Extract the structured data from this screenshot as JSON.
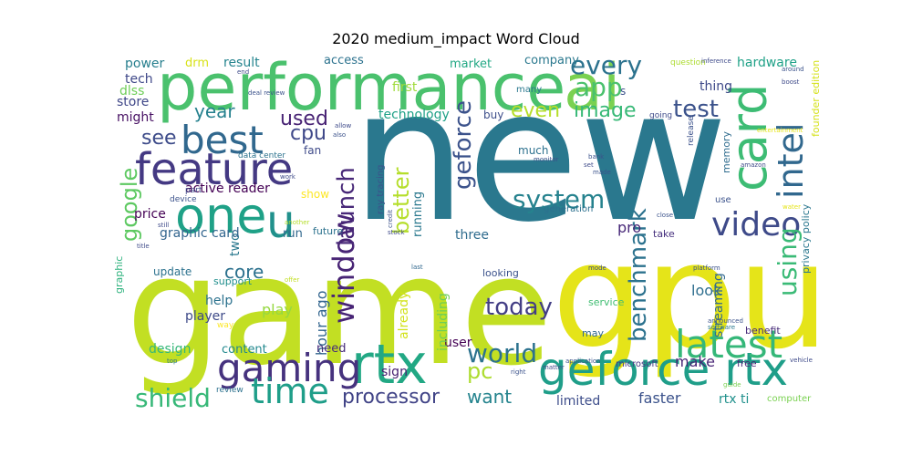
{
  "chart_data": {
    "type": "word_cloud",
    "title": "2020 medium_impact Word Cloud",
    "colormap": "viridis",
    "words": [
      {
        "text": "new",
        "weight": 1.0,
        "color": "#2a788e"
      },
      {
        "text": "game",
        "weight": 0.95,
        "color": "#c2df23"
      },
      {
        "text": "gpu",
        "weight": 0.85,
        "color": "#e5e419"
      },
      {
        "text": "performance",
        "weight": 0.55,
        "color": "#4ac16d"
      },
      {
        "text": "ai",
        "weight": 0.5,
        "color": "#7ad151"
      },
      {
        "text": "rtx",
        "weight": 0.45,
        "color": "#22a884"
      },
      {
        "text": "geforce rtx",
        "weight": 0.4,
        "color": "#1f9e89"
      },
      {
        "text": "best",
        "weight": 0.38,
        "color": "#31688e"
      },
      {
        "text": "one",
        "weight": 0.37,
        "color": "#1fa187"
      },
      {
        "text": "feature",
        "weight": 0.36,
        "color": "#443983"
      },
      {
        "text": "card",
        "weight": 0.35,
        "color": "#3dbc74"
      },
      {
        "text": "gaming",
        "weight": 0.33,
        "color": "#46327e"
      },
      {
        "text": "latest",
        "weight": 0.3,
        "color": "#35b779"
      },
      {
        "text": "video",
        "weight": 0.28,
        "color": "#3e4a89"
      },
      {
        "text": "intel",
        "weight": 0.27,
        "color": "#31688e"
      },
      {
        "text": "u",
        "weight": 0.27,
        "color": "#21918c"
      },
      {
        "text": "time",
        "weight": 0.25,
        "color": "#1f9e89"
      },
      {
        "text": "window",
        "weight": 0.24,
        "color": "#482475"
      },
      {
        "text": "system",
        "weight": 0.23,
        "color": "#26828e"
      },
      {
        "text": "world",
        "weight": 0.22,
        "color": "#2c728e"
      },
      {
        "text": "shield",
        "weight": 0.21,
        "color": "#37b878"
      },
      {
        "text": "processor",
        "weight": 0.2,
        "color": "#414487"
      },
      {
        "text": "benchmark",
        "weight": 0.2,
        "color": "#2c728e"
      },
      {
        "text": "every",
        "weight": 0.2,
        "color": "#2c728e"
      },
      {
        "text": "geforce",
        "weight": 0.19,
        "color": "#3b528b"
      },
      {
        "text": "launch",
        "weight": 0.19,
        "color": "#482878"
      },
      {
        "text": "test",
        "weight": 0.19,
        "color": "#3b528b"
      },
      {
        "text": "better",
        "weight": 0.19,
        "color": "#b5de2b"
      },
      {
        "text": "today",
        "weight": 0.18,
        "color": "#433e85"
      },
      {
        "text": "pc",
        "weight": 0.18,
        "color": "#addc30"
      },
      {
        "text": "using",
        "weight": 0.18,
        "color": "#3aba76"
      },
      {
        "text": "google",
        "weight": 0.17,
        "color": "#5ec962"
      },
      {
        "text": "app",
        "weight": 0.17,
        "color": "#4ac16d"
      },
      {
        "text": "image",
        "weight": 0.17,
        "color": "#38b977"
      },
      {
        "text": "used",
        "weight": 0.16,
        "color": "#482374"
      },
      {
        "text": "see",
        "weight": 0.16,
        "color": "#3e4c8a"
      },
      {
        "text": "want",
        "weight": 0.15,
        "color": "#25848e"
      },
      {
        "text": "even",
        "weight": 0.15,
        "color": "#b5de2b"
      },
      {
        "text": "cpu",
        "weight": 0.14,
        "color": "#3f4889"
      },
      {
        "text": "core",
        "weight": 0.14,
        "color": "#2c718e"
      },
      {
        "text": "year",
        "weight": 0.13,
        "color": "#26818e"
      },
      {
        "text": "look",
        "weight": 0.11,
        "color": "#2e6e8e"
      },
      {
        "text": "make",
        "weight": 0.1,
        "color": "#482576"
      },
      {
        "text": "limited",
        "weight": 0.1,
        "color": "#3d4d8a"
      },
      {
        "text": "faster",
        "weight": 0.1,
        "color": "#3b528b"
      },
      {
        "text": "rtx ti",
        "weight": 0.1,
        "color": "#21918c"
      },
      {
        "text": "hour ago",
        "weight": 0.1,
        "color": "#32658e"
      },
      {
        "text": "pro",
        "weight": 0.1,
        "color": "#482878"
      },
      {
        "text": "streaming",
        "weight": 0.09,
        "color": "#31688e"
      },
      {
        "text": "two",
        "weight": 0.09,
        "color": "#2a788e"
      },
      {
        "text": "three",
        "weight": 0.09,
        "color": "#2f6c8e"
      },
      {
        "text": "help",
        "weight": 0.09,
        "color": "#2c728e"
      },
      {
        "text": "play",
        "weight": 0.09,
        "color": "#95d840"
      },
      {
        "text": "player",
        "weight": 0.09,
        "color": "#3e4a89"
      },
      {
        "text": "design",
        "weight": 0.09,
        "color": "#35b779"
      },
      {
        "text": "price",
        "weight": 0.09,
        "color": "#440154"
      },
      {
        "text": "graphic card",
        "weight": 0.09,
        "color": "#32658e"
      },
      {
        "text": "active reader",
        "weight": 0.09,
        "color": "#440154"
      },
      {
        "text": "content",
        "weight": 0.08,
        "color": "#23898e"
      },
      {
        "text": "need",
        "weight": 0.08,
        "color": "#472c7a"
      },
      {
        "text": "sign",
        "weight": 0.08,
        "color": "#482071"
      },
      {
        "text": "user",
        "weight": 0.08,
        "color": "#440154"
      },
      {
        "text": "including",
        "weight": 0.08,
        "color": "#6ece58"
      },
      {
        "text": "already",
        "weight": 0.08,
        "color": "#d2e21b"
      },
      {
        "text": "running",
        "weight": 0.08,
        "color": "#2a788e"
      },
      {
        "text": "hardware",
        "weight": 0.08,
        "color": "#1fa187"
      },
      {
        "text": "thing",
        "weight": 0.08,
        "color": "#3e4989"
      },
      {
        "text": "update",
        "weight": 0.07,
        "color": "#2c728e"
      },
      {
        "text": "run",
        "weight": 0.07,
        "color": "#31688e"
      },
      {
        "text": "show",
        "weight": 0.07,
        "color": "#fde725"
      },
      {
        "text": "fan",
        "weight": 0.07,
        "color": "#3e4a89"
      },
      {
        "text": "technology",
        "weight": 0.07,
        "color": "#1fa187"
      },
      {
        "text": "first",
        "weight": 0.07,
        "color": "#9fda3a"
      },
      {
        "text": "market",
        "weight": 0.07,
        "color": "#22a884"
      },
      {
        "text": "access",
        "weight": 0.07,
        "color": "#2c728e"
      },
      {
        "text": "result",
        "weight": 0.07,
        "color": "#25848e"
      },
      {
        "text": "drm",
        "weight": 0.07,
        "color": "#d8e219"
      },
      {
        "text": "power",
        "weight": 0.07,
        "color": "#277f8e"
      },
      {
        "text": "tech",
        "weight": 0.07,
        "color": "#3f4889"
      },
      {
        "text": "dlss",
        "weight": 0.07,
        "color": "#6ece58"
      },
      {
        "text": "store",
        "weight": 0.07,
        "color": "#3f4788"
      },
      {
        "text": "might",
        "weight": 0.07,
        "color": "#471063"
      },
      {
        "text": "company",
        "weight": 0.07,
        "color": "#2a788e"
      },
      {
        "text": "buy",
        "weight": 0.07,
        "color": "#3d4e8a"
      },
      {
        "text": "much",
        "weight": 0.07,
        "color": "#2c718e"
      },
      {
        "text": "memory",
        "weight": 0.06,
        "color": "#2f6c8e"
      },
      {
        "text": "founder edition",
        "weight": 0.06,
        "color": "#d5e21a"
      },
      {
        "text": "privacy policy",
        "weight": 0.06,
        "color": "#2a778e"
      },
      {
        "text": "graphic",
        "weight": 0.06,
        "color": "#2db27d"
      },
      {
        "text": "support",
        "weight": 0.06,
        "color": "#218f8d"
      },
      {
        "text": "future",
        "weight": 0.06,
        "color": "#2c728e"
      },
      {
        "text": "ray tracing",
        "weight": 0.06,
        "color": "#3b528b"
      },
      {
        "text": "generation",
        "weight": 0.06,
        "color": "#2c718e"
      },
      {
        "text": "take",
        "weight": 0.06,
        "color": "#46307e"
      },
      {
        "text": "benefit",
        "weight": 0.06,
        "color": "#472c7a"
      },
      {
        "text": "service",
        "weight": 0.06,
        "color": "#40bd72"
      },
      {
        "text": "may",
        "weight": 0.06,
        "color": "#31688e"
      },
      {
        "text": "looking",
        "weight": 0.06,
        "color": "#3b528b"
      },
      {
        "text": "free",
        "weight": 0.06,
        "color": "#482475"
      },
      {
        "text": "microsoft",
        "weight": 0.06,
        "color": "#453882"
      },
      {
        "text": "computer",
        "weight": 0.05,
        "color": "#7ad151"
      },
      {
        "text": "device",
        "weight": 0.05,
        "color": "#3b528b"
      },
      {
        "text": "part",
        "weight": 0.05,
        "color": "#3e4a89"
      },
      {
        "text": "data center",
        "weight": 0.05,
        "color": "#2c728e"
      },
      {
        "text": "way",
        "weight": 0.05,
        "color": "#fde725"
      },
      {
        "text": "review",
        "weight": 0.05,
        "color": "#2c718e"
      },
      {
        "text": "use",
        "weight": 0.05,
        "color": "#3b528b"
      },
      {
        "text": "question",
        "weight": 0.05,
        "color": "#addc30"
      },
      {
        "text": "release",
        "weight": 0.05,
        "color": "#3b528b"
      },
      {
        "text": "going",
        "weight": 0.05,
        "color": "#3e4a89"
      },
      {
        "text": "many",
        "weight": 0.05,
        "color": "#2a788e"
      },
      {
        "text": "s",
        "weight": 0.05,
        "color": "#3b528b"
      },
      {
        "text": "still",
        "weight": 0.03,
        "color": "#3e4a89"
      },
      {
        "text": "another",
        "weight": 0.03,
        "color": "#b5de2b"
      },
      {
        "text": "title",
        "weight": 0.03,
        "color": "#3e4a89"
      },
      {
        "text": "offer",
        "weight": 0.03,
        "color": "#c2df23"
      },
      {
        "text": "last",
        "weight": 0.03,
        "color": "#31688e"
      },
      {
        "text": "mode",
        "weight": 0.03,
        "color": "#3e4a89"
      },
      {
        "text": "platform",
        "weight": 0.03,
        "color": "#3b528b"
      },
      {
        "text": "software",
        "weight": 0.03,
        "color": "#2a788e"
      },
      {
        "text": "announced",
        "weight": 0.03,
        "color": "#3b528b"
      },
      {
        "text": "vehicle",
        "weight": 0.03,
        "color": "#3e4a89"
      },
      {
        "text": "guide",
        "weight": 0.03,
        "color": "#7ad151"
      },
      {
        "text": "application",
        "weight": 0.03,
        "color": "#3b528b"
      },
      {
        "text": "matter",
        "weight": 0.03,
        "color": "#3e4a89"
      },
      {
        "text": "right",
        "weight": 0.03,
        "color": "#3b528b"
      },
      {
        "text": "top",
        "weight": 0.03,
        "color": "#2a788e"
      },
      {
        "text": "inference",
        "weight": 0.03,
        "color": "#3e4a89"
      },
      {
        "text": "around",
        "weight": 0.03,
        "color": "#3b528b"
      },
      {
        "text": "boost",
        "weight": 0.03,
        "color": "#3e4a89"
      },
      {
        "text": "deal review",
        "weight": 0.03,
        "color": "#3b528b"
      },
      {
        "text": "allow",
        "weight": 0.03,
        "color": "#3e4a89"
      },
      {
        "text": "bank",
        "weight": 0.03,
        "color": "#3b528b"
      },
      {
        "text": "amazon",
        "weight": 0.03,
        "color": "#3e4a89"
      },
      {
        "text": "credit",
        "weight": 0.03,
        "color": "#3b528b"
      },
      {
        "text": "stock",
        "weight": 0.03,
        "color": "#3e4a89"
      },
      {
        "text": "close",
        "weight": 0.03,
        "color": "#3b528b"
      },
      {
        "text": "water",
        "weight": 0.03,
        "color": "#e5e419"
      },
      {
        "text": "work",
        "weight": 0.03,
        "color": "#3e4a89"
      },
      {
        "text": "made",
        "weight": 0.03,
        "color": "#3b528b"
      },
      {
        "text": "set",
        "weight": 0.03,
        "color": "#3e4a89"
      },
      {
        "text": "monitor",
        "weight": 0.03,
        "color": "#3b528b"
      },
      {
        "text": "entertainment",
        "weight": 0.03,
        "color": "#e5e419"
      },
      {
        "text": "end",
        "weight": 0.03,
        "color": "#3e4a89"
      },
      {
        "text": "also",
        "weight": 0.03,
        "color": "#3b528b"
      }
    ]
  }
}
